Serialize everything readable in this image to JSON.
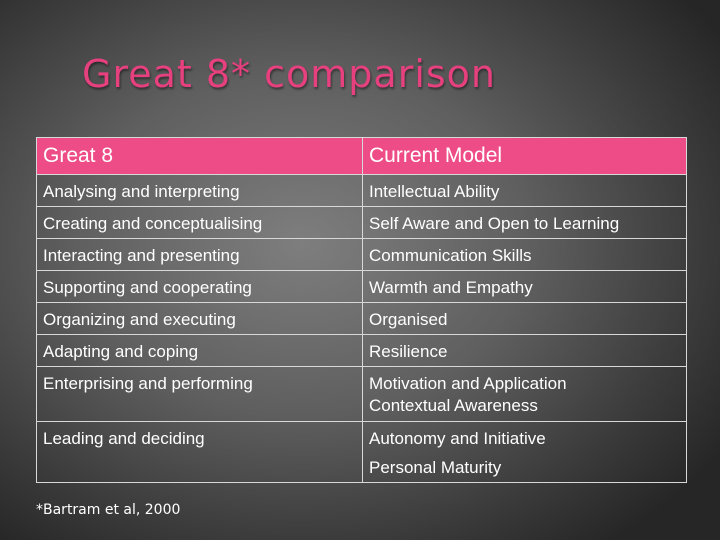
{
  "slide": {
    "title": "Great 8* comparison",
    "footnote": "*Bartram et al, 2000"
  },
  "table": {
    "headers": [
      "Great 8",
      "Current Model"
    ],
    "rows": [
      {
        "great8": "Analysing and interpreting",
        "current": [
          "Intellectual Ability"
        ]
      },
      {
        "great8": "Creating and conceptualising",
        "current": [
          "Self Aware and Open to Learning"
        ]
      },
      {
        "great8": "Interacting and presenting",
        "current": [
          "Communication Skills"
        ]
      },
      {
        "great8": "Supporting and cooperating",
        "current": [
          "Warmth and Empathy"
        ]
      },
      {
        "great8": "Organizing and executing",
        "current": [
          "Organised"
        ]
      },
      {
        "great8": "Adapting and coping",
        "current": [
          "Resilience"
        ]
      },
      {
        "great8": "Enterprising and performing",
        "current": [
          "Motivation and Application",
          "Contextual Awareness"
        ]
      },
      {
        "great8": "Leading and deciding",
        "current": [
          "Autonomy and Initiative",
          "Personal Maturity"
        ]
      }
    ]
  },
  "colors": {
    "title": "#e6407e",
    "header_fill": "#ee4c86",
    "border": "#d8d8d8",
    "text": "#ffffff"
  }
}
